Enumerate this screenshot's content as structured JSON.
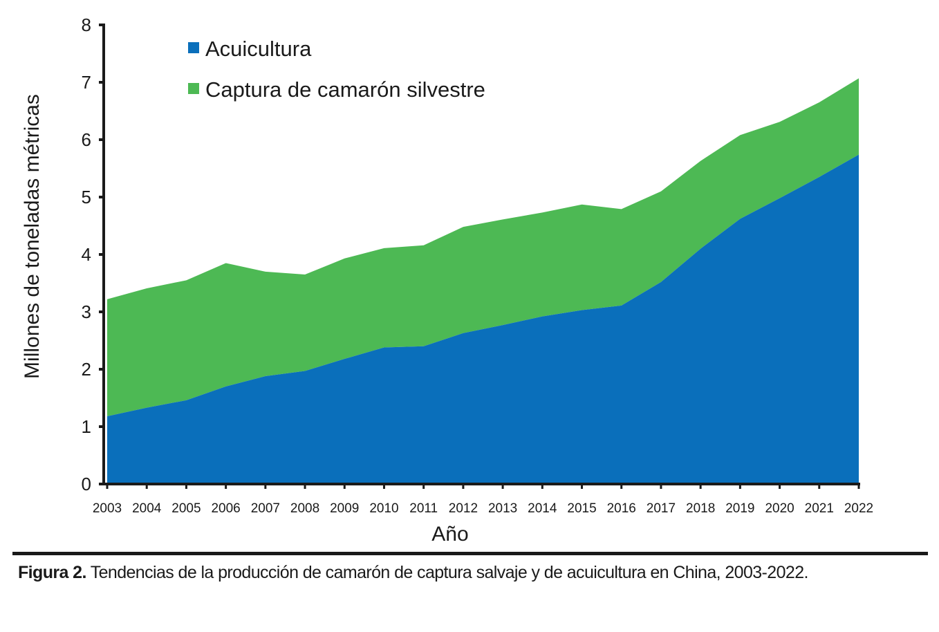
{
  "chart_data": {
    "type": "area",
    "stacked": true,
    "title": "",
    "xlabel": "Año",
    "ylabel": "Millones de toneladas métricas",
    "ylim": [
      0,
      8
    ],
    "yticks": [
      "0",
      "1",
      "2",
      "3",
      "4",
      "5",
      "6",
      "7",
      "8"
    ],
    "x": [
      "2003",
      "2004",
      "2005",
      "2006",
      "2007",
      "2008",
      "2009",
      "2010",
      "2011",
      "2012",
      "2013",
      "2014",
      "2015",
      "2016",
      "2017",
      "2018",
      "2019",
      "2020",
      "2021",
      "2022"
    ],
    "series": [
      {
        "name": "Acuicultura",
        "color": "#0a6fbb",
        "values": [
          1.18,
          1.33,
          1.46,
          1.7,
          1.88,
          1.97,
          2.18,
          2.38,
          2.4,
          2.63,
          2.77,
          2.92,
          3.03,
          3.11,
          3.52,
          4.1,
          4.62,
          4.98,
          5.35,
          5.74
        ]
      },
      {
        "name": "Captura de camarón silvestre",
        "color": "#4db954",
        "values": [
          2.04,
          2.08,
          2.09,
          2.15,
          1.82,
          1.68,
          1.75,
          1.73,
          1.76,
          1.85,
          1.84,
          1.81,
          1.84,
          1.68,
          1.58,
          1.53,
          1.46,
          1.33,
          1.3,
          1.33
        ]
      }
    ],
    "legend_position": "top-left"
  },
  "caption": {
    "label": "Figura 2.",
    "text": " Tendencias de la producción de camarón de captura salvaje y de acuicultura en China, 2003-2022."
  },
  "colors": {
    "axis": "#1a1a1a"
  }
}
